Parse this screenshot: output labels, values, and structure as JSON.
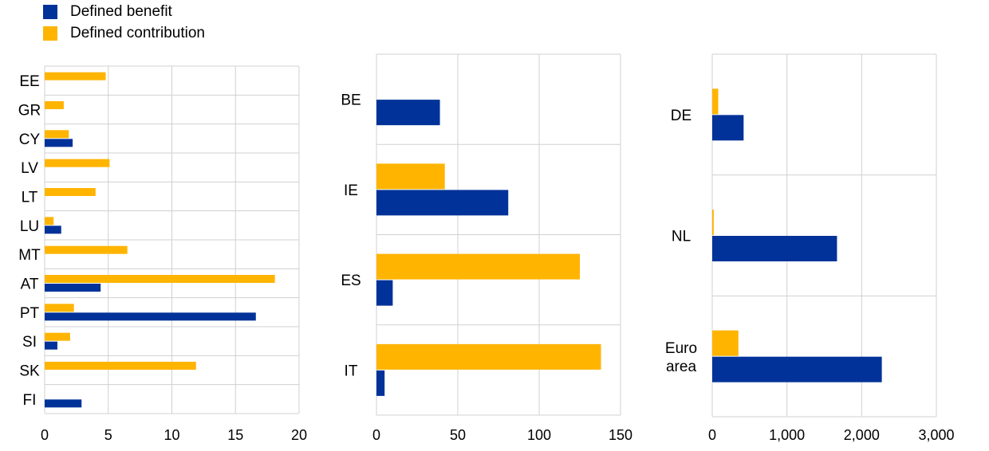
{
  "legend": {
    "items": [
      {
        "label": "Defined benefit",
        "color": "#003299"
      },
      {
        "label": "Defined contribution",
        "color": "#FFB400"
      }
    ]
  },
  "chart_data": [
    {
      "type": "bar",
      "orientation": "horizontal",
      "categories": [
        "EE",
        "GR",
        "CY",
        "LV",
        "LT",
        "LU",
        "MT",
        "AT",
        "PT",
        "SI",
        "SK",
        "FI"
      ],
      "series": [
        {
          "name": "Defined benefit",
          "color": "#003299",
          "values": [
            0,
            0,
            2.2,
            0,
            0,
            1.3,
            0,
            4.4,
            16.6,
            1.0,
            0,
            2.9
          ]
        },
        {
          "name": "Defined contribution",
          "color": "#FFB400",
          "values": [
            4.8,
            1.5,
            1.9,
            5.1,
            4.0,
            0.7,
            6.5,
            18.1,
            2.3,
            2.0,
            11.9,
            0
          ]
        }
      ],
      "xlim": [
        0,
        20
      ],
      "xticks": [
        0,
        5,
        10,
        15,
        20
      ],
      "grid": true
    },
    {
      "type": "bar",
      "orientation": "horizontal",
      "categories": [
        "BE",
        "IE",
        "ES",
        "IT"
      ],
      "series": [
        {
          "name": "Defined benefit",
          "color": "#003299",
          "values": [
            39,
            81,
            10,
            5
          ]
        },
        {
          "name": "Defined contribution",
          "color": "#FFB400",
          "values": [
            0,
            42,
            125,
            138
          ]
        }
      ],
      "xlim": [
        0,
        150
      ],
      "xticks": [
        0,
        50,
        100,
        150
      ],
      "grid": true
    },
    {
      "type": "bar",
      "orientation": "horizontal",
      "categories": [
        "DE",
        "NL",
        "Euro area"
      ],
      "series": [
        {
          "name": "Defined benefit",
          "color": "#003299",
          "values": [
            420,
            1670,
            2270
          ]
        },
        {
          "name": "Defined contribution",
          "color": "#FFB400",
          "values": [
            80,
            20,
            350
          ]
        }
      ],
      "xlim": [
        0,
        3000
      ],
      "xticks": [
        0,
        1000,
        2000,
        3000
      ],
      "xtick_labels": [
        "0",
        "1,000",
        "2,000",
        "3,000"
      ],
      "grid": true
    }
  ]
}
